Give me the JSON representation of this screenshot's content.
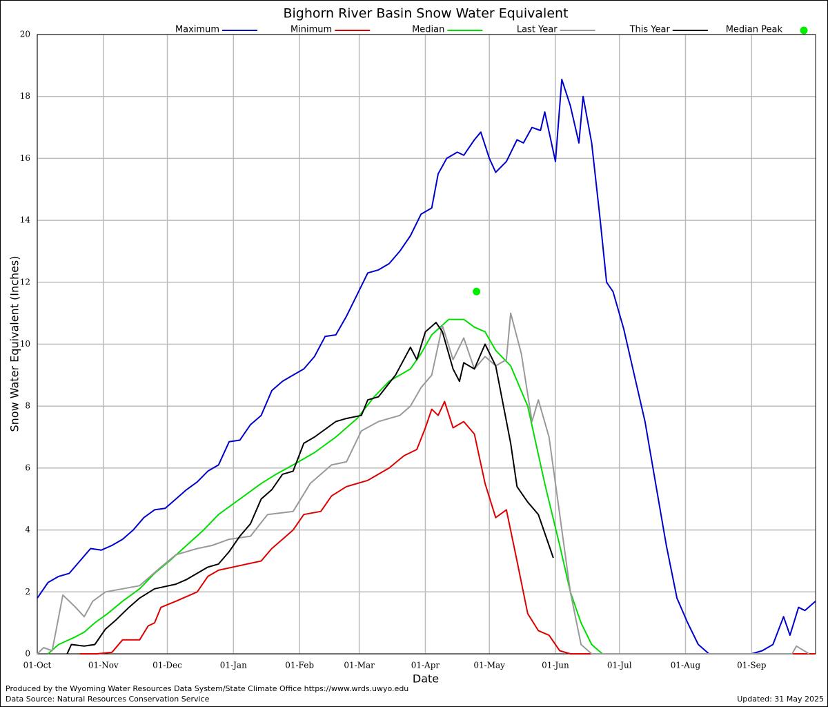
{
  "chart_data": {
    "type": "line",
    "title": "Bighorn River Basin Snow Water Equivalent",
    "xlabel": "Date",
    "ylabel": "Snow Water Equivalent (Inches)",
    "footer_left": [
      "Produced by the Wyoming Water Resources Data System/State Climate Office https://www.wrds.uwyo.edu",
      "Data Source: Natural Resources Conservation Service"
    ],
    "footer_right": "Updated: 31 May 2025",
    "xlim": [
      0,
      365
    ],
    "ylim": [
      0,
      20
    ],
    "yticks": [
      0,
      2,
      4,
      6,
      8,
      10,
      12,
      14,
      16,
      18,
      20
    ],
    "xticks": [
      {
        "value": 0,
        "label": "01-Oct"
      },
      {
        "value": 31,
        "label": "01-Nov"
      },
      {
        "value": 61,
        "label": "01-Dec"
      },
      {
        "value": 92,
        "label": "01-Jan"
      },
      {
        "value": 123,
        "label": "01-Feb"
      },
      {
        "value": 151,
        "label": "01-Mar"
      },
      {
        "value": 182,
        "label": "01-Apr"
      },
      {
        "value": 212,
        "label": "01-May"
      },
      {
        "value": 243,
        "label": "01-Jun"
      },
      {
        "value": 273,
        "label": "01-Jul"
      },
      {
        "value": 304,
        "label": "01-Aug"
      },
      {
        "value": 335,
        "label": "01-Sep"
      }
    ],
    "grid": true,
    "series": [
      {
        "name": "Maximum",
        "color": "#0000cc",
        "x": [
          0,
          5,
          10,
          15,
          20,
          25,
          30,
          35,
          40,
          45,
          50,
          55,
          60,
          65,
          70,
          75,
          80,
          85,
          90,
          95,
          100,
          105,
          110,
          115,
          120,
          125,
          130,
          135,
          140,
          145,
          150,
          155,
          160,
          165,
          170,
          175,
          180,
          185,
          188,
          192,
          197,
          200,
          205,
          208,
          212,
          215,
          220,
          225,
          228,
          232,
          236,
          238,
          243,
          246,
          250,
          254,
          256,
          260,
          264,
          267,
          270,
          275,
          280,
          285,
          290,
          295,
          300,
          305,
          310,
          315,
          325,
          335,
          340,
          345,
          350,
          353,
          357,
          360,
          365
        ],
        "values": [
          1.8,
          2.3,
          2.5,
          2.6,
          3.0,
          3.4,
          3.35,
          3.5,
          3.7,
          4.0,
          4.4,
          4.65,
          4.7,
          5.0,
          5.3,
          5.55,
          5.9,
          6.1,
          6.85,
          6.9,
          7.4,
          7.7,
          8.5,
          8.8,
          9.0,
          9.2,
          9.6,
          10.25,
          10.3,
          10.9,
          11.6,
          12.3,
          12.4,
          12.6,
          13.0,
          13.5,
          14.2,
          14.4,
          15.5,
          16.0,
          16.2,
          16.1,
          16.6,
          16.85,
          16.0,
          15.55,
          15.9,
          16.6,
          16.5,
          17.0,
          16.9,
          17.5,
          15.9,
          18.55,
          17.7,
          16.5,
          18.0,
          16.5,
          14.0,
          12.0,
          11.7,
          10.5,
          9.0,
          7.5,
          5.5,
          3.5,
          1.8,
          1.0,
          0.3,
          0,
          0,
          0,
          0.1,
          0.3,
          1.2,
          0.6,
          1.5,
          1.4,
          1.7
        ]
      },
      {
        "name": "Minimum",
        "color": "#dd0000",
        "x": [
          20,
          28,
          35,
          40,
          48,
          52,
          55,
          58,
          65,
          75,
          80,
          85,
          95,
          105,
          110,
          115,
          120,
          125,
          133,
          138,
          145,
          155,
          165,
          172,
          178,
          182,
          185,
          188,
          191,
          195,
          200,
          205,
          210,
          215,
          220,
          225,
          230,
          235,
          240,
          245,
          250,
          365
        ],
        "values": [
          0,
          0,
          0.05,
          0.45,
          0.45,
          0.9,
          1.0,
          1.5,
          1.7,
          2.0,
          2.5,
          2.7,
          2.85,
          3.0,
          3.4,
          3.7,
          4.0,
          4.5,
          4.6,
          5.1,
          5.4,
          5.6,
          6.0,
          6.4,
          6.6,
          7.3,
          7.9,
          7.7,
          8.15,
          7.3,
          7.5,
          7.1,
          5.5,
          4.4,
          4.65,
          3.0,
          1.3,
          0.75,
          0.6,
          0.1,
          0,
          0
        ]
      },
      {
        "name": "Median",
        "color": "#00dd00",
        "x": [
          5,
          10,
          18,
          22,
          27,
          33,
          40,
          48,
          55,
          62,
          70,
          78,
          85,
          95,
          105,
          112,
          120,
          130,
          140,
          150,
          158,
          165,
          175,
          180,
          185,
          193,
          200,
          205,
          210,
          215,
          222,
          230,
          238,
          245,
          250,
          255,
          260,
          265
        ],
        "values": [
          0,
          0.3,
          0.55,
          0.7,
          1.0,
          1.3,
          1.7,
          2.1,
          2.6,
          3.0,
          3.5,
          4.0,
          4.5,
          5.0,
          5.5,
          5.8,
          6.1,
          6.5,
          7.0,
          7.6,
          8.3,
          8.8,
          9.2,
          9.7,
          10.3,
          10.8,
          10.8,
          10.55,
          10.4,
          9.8,
          9.3,
          8.0,
          5.5,
          3.5,
          2.0,
          1.0,
          0.3,
          0
        ]
      },
      {
        "name": "Last Year",
        "color": "#999999",
        "x": [
          0,
          3,
          7,
          12,
          18,
          22,
          26,
          32,
          40,
          48,
          58,
          65,
          75,
          82,
          90,
          100,
          108,
          120,
          128,
          138,
          145,
          152,
          160,
          170,
          175,
          180,
          185,
          190,
          195,
          200,
          205,
          210,
          215,
          220,
          222,
          227,
          232,
          235,
          240,
          245,
          250,
          255,
          260,
          354,
          356,
          362
        ],
        "values": [
          0,
          0.2,
          0.1,
          1.9,
          1.5,
          1.2,
          1.7,
          2.0,
          2.1,
          2.2,
          2.8,
          3.2,
          3.4,
          3.5,
          3.7,
          3.8,
          4.5,
          4.6,
          5.5,
          6.1,
          6.2,
          7.2,
          7.5,
          7.7,
          8.0,
          8.6,
          9.0,
          10.6,
          9.5,
          10.2,
          9.2,
          9.6,
          9.3,
          9.5,
          11.0,
          9.7,
          7.5,
          8.2,
          7.0,
          4.5,
          2.0,
          0.3,
          0,
          0,
          0.25,
          0
        ]
      },
      {
        "name": "This Year",
        "color": "#000000",
        "x": [
          14,
          16,
          22,
          27,
          32,
          37,
          43,
          48,
          55,
          65,
          70,
          80,
          85,
          90,
          95,
          100,
          105,
          110,
          115,
          120,
          125,
          130,
          140,
          145,
          152,
          155,
          160,
          168,
          175,
          178,
          182,
          187,
          190,
          195,
          198,
          200,
          205,
          210,
          215,
          222,
          225,
          230,
          235,
          242
        ],
        "values": [
          0,
          0.3,
          0.25,
          0.3,
          0.8,
          1.1,
          1.5,
          1.8,
          2.1,
          2.25,
          2.4,
          2.8,
          2.9,
          3.3,
          3.8,
          4.2,
          5.0,
          5.3,
          5.8,
          5.9,
          6.8,
          7.0,
          7.5,
          7.6,
          7.7,
          8.2,
          8.3,
          9.0,
          9.9,
          9.5,
          10.4,
          10.7,
          10.4,
          9.2,
          8.8,
          9.4,
          9.2,
          10.0,
          9.3,
          6.8,
          5.4,
          4.9,
          4.5,
          3.1
        ]
      },
      {
        "name": "Median Peak",
        "color": "#00ee00",
        "marker": true,
        "x": [
          206
        ],
        "values": [
          11.7
        ]
      }
    ]
  }
}
